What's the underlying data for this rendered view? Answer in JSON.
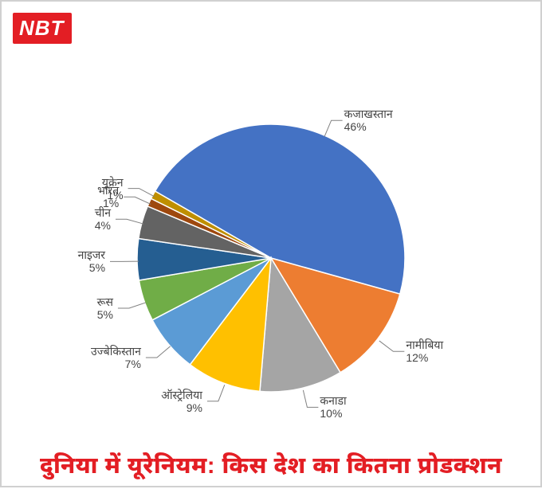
{
  "logo_text": "NBT",
  "title": "दुनिया में यूरेनियम: किस देश का कितना प्रोडक्शन",
  "chart": {
    "type": "pie",
    "start_angle_deg": 300,
    "background_color": "#ffffff",
    "title_color": "#e31e24",
    "title_fontsize": 29,
    "label_fontsize": 14,
    "label_color": "#444444",
    "leader_color": "#808080",
    "slices": [
      {
        "label": "कजाखस्तान",
        "value": 46,
        "color": "#4472c4"
      },
      {
        "label": "नामीबिया",
        "value": 12,
        "color": "#ed7d31"
      },
      {
        "label": "कनाडा",
        "value": 10,
        "color": "#a5a5a5"
      },
      {
        "label": "ऑस्ट्रेलिया",
        "value": 9,
        "color": "#ffc000"
      },
      {
        "label": "उज्बेकिस्तान",
        "value": 7,
        "color": "#5b9bd5"
      },
      {
        "label": "रूस",
        "value": 5,
        "color": "#70ad47"
      },
      {
        "label": "नाइजर",
        "value": 5,
        "color": "#255e91"
      },
      {
        "label": "चीन",
        "value": 4,
        "color": "#636363"
      },
      {
        "label": "भारत",
        "value": 1,
        "color": "#9e480e"
      },
      {
        "label": "यूक्रेन",
        "value": 1,
        "color": "#bf8f00"
      }
    ]
  }
}
